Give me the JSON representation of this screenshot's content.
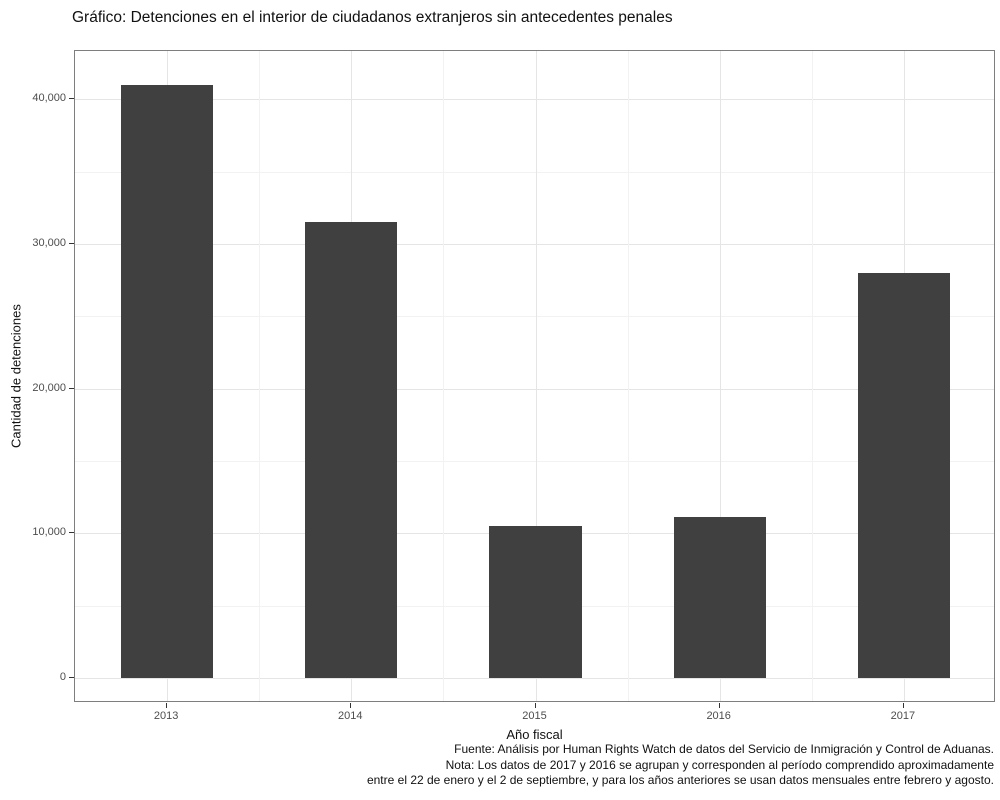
{
  "title": "Gráfico: Detenciones en el interior de ciudadanos extranjeros sin antecedentes penales",
  "chart_data": {
    "type": "bar",
    "categories": [
      "2013",
      "2014",
      "2015",
      "2016",
      "2017"
    ],
    "values": [
      41000,
      31500,
      10500,
      11100,
      28000
    ],
    "title": "Gráfico: Detenciones en el interior de ciudadanos extranjeros sin antecedentes penales",
    "xlabel": "Año fiscal",
    "ylabel": "Cantidad de detenciones",
    "ylim": [
      0,
      40000
    ],
    "y_ticks": [
      {
        "value": 0,
        "label": "0"
      },
      {
        "value": 10000,
        "label": "10,000"
      },
      {
        "value": 20000,
        "label": "20,000"
      },
      {
        "value": 30000,
        "label": "30,000"
      },
      {
        "value": 40000,
        "label": "40,000"
      }
    ],
    "y_minor_ticks": [
      5000,
      15000,
      25000,
      35000
    ],
    "grid": "major-and-minor, light gray on white panel",
    "legend": "none",
    "bar_color": "#404040"
  },
  "footer": {
    "lines": [
      "Fuente: Análisis por Human Rights Watch de datos del Servicio de Inmigración y Control de Aduanas.",
      "Nota: Los datos de 2017 y 2016 se agrupan y corresponden al período comprendido aproximadamente",
      "entre el 22 de enero y el 2 de septiembre, y para los años anteriores se usan datos mensuales entre febrero y agosto."
    ]
  },
  "colors": {
    "bar": "#404040",
    "panel_border": "#7e7e7e",
    "grid_major": "#e5e5e5",
    "grid_minor": "#f2f2f2",
    "tick_text": "#4d4d4d",
    "background": "#ffffff"
  }
}
